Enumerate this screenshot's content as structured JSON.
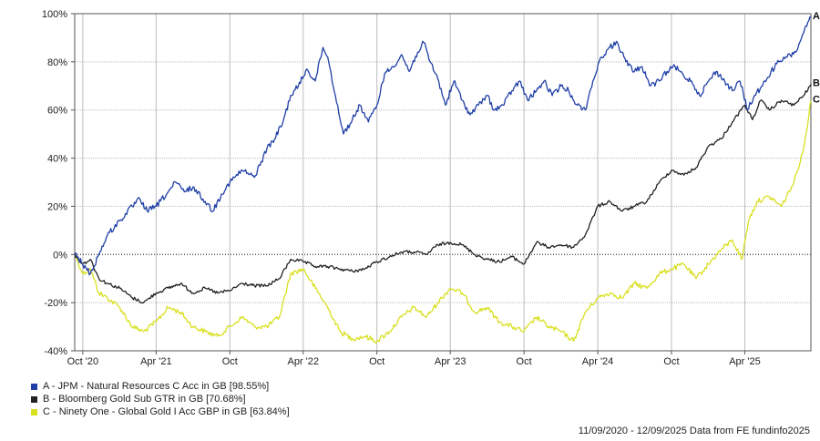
{
  "chart_data": {
    "type": "line",
    "ylim": [
      -40,
      100
    ],
    "yticks": [
      100,
      80,
      60,
      40,
      20,
      0,
      -20,
      -40
    ],
    "ytick_labels": [
      "100%",
      "80%",
      "60%",
      "40%",
      "20%",
      "0%",
      "-20%",
      "-40%"
    ],
    "xlim": [
      "2020-09-11",
      "2025-09-12"
    ],
    "xticks": [
      "2020-10-01",
      "2021-04-01",
      "2021-10-01",
      "2022-04-01",
      "2022-10-01",
      "2023-04-01",
      "2023-10-01",
      "2024-04-01",
      "2024-10-01",
      "2025-04-01"
    ],
    "xtick_labels": [
      "Oct '20",
      "Apr '21",
      "Oct",
      "Apr '22",
      "Oct",
      "Apr '23",
      "Oct",
      "Apr '24",
      "Oct",
      "Apr '25"
    ],
    "grid": true,
    "legend_position": "bottom-left",
    "series": [
      {
        "name": "A - JPM - Natural Resources C Acc in GB [98.55%]",
        "end_label": "A",
        "color": "#1f3fa6",
        "points": [
          [
            "2020-09-11",
            0
          ],
          [
            "2020-10-01",
            -4
          ],
          [
            "2020-10-20",
            -8
          ],
          [
            "2020-11-10",
            0
          ],
          [
            "2020-12-01",
            8
          ],
          [
            "2021-01-01",
            14
          ],
          [
            "2021-02-01",
            20
          ],
          [
            "2021-02-20",
            23
          ],
          [
            "2021-03-10",
            18
          ],
          [
            "2021-04-01",
            20
          ],
          [
            "2021-05-01",
            26
          ],
          [
            "2021-05-20",
            30
          ],
          [
            "2021-06-10",
            26
          ],
          [
            "2021-07-01",
            28
          ],
          [
            "2021-08-01",
            22
          ],
          [
            "2021-08-20",
            18
          ],
          [
            "2021-09-10",
            25
          ],
          [
            "2021-10-01",
            30
          ],
          [
            "2021-11-01",
            35
          ],
          [
            "2021-12-01",
            32
          ],
          [
            "2022-01-01",
            44
          ],
          [
            "2022-01-20",
            48
          ],
          [
            "2022-02-10",
            55
          ],
          [
            "2022-03-01",
            66
          ],
          [
            "2022-03-20",
            70
          ],
          [
            "2022-04-10",
            77
          ],
          [
            "2022-05-01",
            72
          ],
          [
            "2022-05-20",
            86
          ],
          [
            "2022-06-01",
            82
          ],
          [
            "2022-06-20",
            66
          ],
          [
            "2022-07-10",
            50
          ],
          [
            "2022-08-01",
            56
          ],
          [
            "2022-08-20",
            62
          ],
          [
            "2022-09-10",
            55
          ],
          [
            "2022-10-01",
            62
          ],
          [
            "2022-10-20",
            75
          ],
          [
            "2022-11-10",
            78
          ],
          [
            "2022-12-01",
            83
          ],
          [
            "2022-12-20",
            76
          ],
          [
            "2023-01-10",
            84
          ],
          [
            "2023-01-25",
            88
          ],
          [
            "2023-02-10",
            80
          ],
          [
            "2023-03-01",
            73
          ],
          [
            "2023-03-20",
            62
          ],
          [
            "2023-04-10",
            72
          ],
          [
            "2023-05-01",
            64
          ],
          [
            "2023-05-20",
            58
          ],
          [
            "2023-06-10",
            62
          ],
          [
            "2023-07-01",
            66
          ],
          [
            "2023-07-20",
            60
          ],
          [
            "2023-08-10",
            62
          ],
          [
            "2023-09-01",
            68
          ],
          [
            "2023-09-20",
            72
          ],
          [
            "2023-10-10",
            64
          ],
          [
            "2023-11-01",
            68
          ],
          [
            "2023-11-20",
            72
          ],
          [
            "2023-12-10",
            66
          ],
          [
            "2024-01-01",
            70
          ],
          [
            "2024-01-20",
            68
          ],
          [
            "2024-02-10",
            62
          ],
          [
            "2024-03-01",
            60
          ],
          [
            "2024-03-20",
            72
          ],
          [
            "2024-04-10",
            82
          ],
          [
            "2024-05-01",
            86
          ],
          [
            "2024-05-20",
            88
          ],
          [
            "2024-06-10",
            80
          ],
          [
            "2024-07-01",
            76
          ],
          [
            "2024-07-20",
            78
          ],
          [
            "2024-08-10",
            70
          ],
          [
            "2024-09-01",
            72
          ],
          [
            "2024-09-20",
            76
          ],
          [
            "2024-10-10",
            78
          ],
          [
            "2024-11-01",
            74
          ],
          [
            "2024-11-20",
            72
          ],
          [
            "2024-12-10",
            66
          ],
          [
            "2025-01-01",
            72
          ],
          [
            "2025-01-20",
            76
          ],
          [
            "2025-02-10",
            72
          ],
          [
            "2025-03-01",
            68
          ],
          [
            "2025-03-20",
            72
          ],
          [
            "2025-04-08",
            60
          ],
          [
            "2025-04-25",
            66
          ],
          [
            "2025-05-15",
            70
          ],
          [
            "2025-06-05",
            76
          ],
          [
            "2025-06-25",
            80
          ],
          [
            "2025-07-15",
            82
          ],
          [
            "2025-08-05",
            84
          ],
          [
            "2025-08-25",
            92
          ],
          [
            "2025-09-12",
            98.55
          ]
        ]
      },
      {
        "name": "B - Bloomberg Gold Sub GTR in GB [70.68%]",
        "end_label": "B",
        "color": "#222222",
        "points": [
          [
            "2020-09-11",
            0
          ],
          [
            "2020-10-01",
            -4
          ],
          [
            "2020-10-20",
            -2
          ],
          [
            "2020-11-10",
            -10
          ],
          [
            "2020-12-01",
            -12
          ],
          [
            "2021-01-01",
            -14
          ],
          [
            "2021-02-01",
            -18
          ],
          [
            "2021-03-01",
            -20
          ],
          [
            "2021-04-01",
            -16
          ],
          [
            "2021-05-01",
            -14
          ],
          [
            "2021-06-01",
            -12
          ],
          [
            "2021-07-01",
            -16
          ],
          [
            "2021-08-01",
            -14
          ],
          [
            "2021-09-01",
            -16
          ],
          [
            "2021-10-01",
            -15
          ],
          [
            "2021-11-01",
            -12
          ],
          [
            "2021-12-01",
            -13
          ],
          [
            "2022-01-01",
            -13
          ],
          [
            "2022-02-01",
            -10
          ],
          [
            "2022-03-01",
            -2
          ],
          [
            "2022-04-01",
            -3
          ],
          [
            "2022-05-01",
            -5
          ],
          [
            "2022-06-01",
            -5
          ],
          [
            "2022-07-01",
            -6
          ],
          [
            "2022-08-01",
            -7
          ],
          [
            "2022-09-01",
            -6
          ],
          [
            "2022-10-01",
            -3
          ],
          [
            "2022-11-01",
            -1
          ],
          [
            "2022-12-01",
            1
          ],
          [
            "2023-01-01",
            1
          ],
          [
            "2023-02-01",
            0
          ],
          [
            "2023-03-01",
            4
          ],
          [
            "2023-04-01",
            5
          ],
          [
            "2023-05-01",
            4
          ],
          [
            "2023-06-01",
            0
          ],
          [
            "2023-07-01",
            -2
          ],
          [
            "2023-08-01",
            -3
          ],
          [
            "2023-09-01",
            -1
          ],
          [
            "2023-10-01",
            -4
          ],
          [
            "2023-11-01",
            5
          ],
          [
            "2023-12-01",
            3
          ],
          [
            "2024-01-01",
            4
          ],
          [
            "2024-02-01",
            3
          ],
          [
            "2024-03-01",
            8
          ],
          [
            "2024-04-01",
            20
          ],
          [
            "2024-05-01",
            22
          ],
          [
            "2024-06-01",
            18
          ],
          [
            "2024-07-01",
            20
          ],
          [
            "2024-08-01",
            22
          ],
          [
            "2024-09-01",
            30
          ],
          [
            "2024-10-01",
            35
          ],
          [
            "2024-11-01",
            33
          ],
          [
            "2024-12-01",
            36
          ],
          [
            "2025-01-01",
            45
          ],
          [
            "2025-02-01",
            48
          ],
          [
            "2025-03-01",
            55
          ],
          [
            "2025-04-01",
            62
          ],
          [
            "2025-04-20",
            56
          ],
          [
            "2025-05-10",
            64
          ],
          [
            "2025-06-01",
            60
          ],
          [
            "2025-07-01",
            64
          ],
          [
            "2025-08-01",
            62
          ],
          [
            "2025-08-25",
            66
          ],
          [
            "2025-09-12",
            70.68
          ]
        ]
      },
      {
        "name": "C - Ninety One - Global Gold I Acc GBP in GB [63.84%]",
        "end_label": "C",
        "color": "#d9e021",
        "points": [
          [
            "2020-09-11",
            0
          ],
          [
            "2020-10-01",
            -8
          ],
          [
            "2020-10-20",
            -6
          ],
          [
            "2020-11-10",
            -16
          ],
          [
            "2020-12-01",
            -18
          ],
          [
            "2021-01-01",
            -22
          ],
          [
            "2021-02-01",
            -30
          ],
          [
            "2021-03-01",
            -32
          ],
          [
            "2021-04-01",
            -28
          ],
          [
            "2021-05-01",
            -22
          ],
          [
            "2021-06-01",
            -24
          ],
          [
            "2021-07-01",
            -30
          ],
          [
            "2021-08-01",
            -32
          ],
          [
            "2021-09-01",
            -34
          ],
          [
            "2021-10-01",
            -30
          ],
          [
            "2021-11-01",
            -26
          ],
          [
            "2021-12-01",
            -30
          ],
          [
            "2022-01-01",
            -30
          ],
          [
            "2022-02-01",
            -26
          ],
          [
            "2022-03-01",
            -8
          ],
          [
            "2022-04-01",
            -6
          ],
          [
            "2022-05-01",
            -14
          ],
          [
            "2022-06-01",
            -22
          ],
          [
            "2022-07-01",
            -32
          ],
          [
            "2022-08-01",
            -35
          ],
          [
            "2022-09-01",
            -34
          ],
          [
            "2022-10-01",
            -36
          ],
          [
            "2022-11-01",
            -32
          ],
          [
            "2022-12-01",
            -26
          ],
          [
            "2023-01-01",
            -22
          ],
          [
            "2023-02-01",
            -26
          ],
          [
            "2023-03-01",
            -20
          ],
          [
            "2023-04-01",
            -14
          ],
          [
            "2023-05-01",
            -16
          ],
          [
            "2023-06-01",
            -24
          ],
          [
            "2023-07-01",
            -22
          ],
          [
            "2023-08-01",
            -28
          ],
          [
            "2023-09-01",
            -30
          ],
          [
            "2023-10-01",
            -32
          ],
          [
            "2023-11-01",
            -26
          ],
          [
            "2023-12-01",
            -30
          ],
          [
            "2024-01-01",
            -32
          ],
          [
            "2024-02-01",
            -36
          ],
          [
            "2024-03-01",
            -24
          ],
          [
            "2024-04-01",
            -18
          ],
          [
            "2024-05-01",
            -16
          ],
          [
            "2024-06-01",
            -18
          ],
          [
            "2024-07-01",
            -12
          ],
          [
            "2024-08-01",
            -14
          ],
          [
            "2024-09-01",
            -8
          ],
          [
            "2024-10-01",
            -6
          ],
          [
            "2024-11-01",
            -4
          ],
          [
            "2024-12-01",
            -10
          ],
          [
            "2025-01-01",
            -4
          ],
          [
            "2025-02-01",
            2
          ],
          [
            "2025-03-01",
            6
          ],
          [
            "2025-03-25",
            -2
          ],
          [
            "2025-04-10",
            14
          ],
          [
            "2025-05-01",
            22
          ],
          [
            "2025-06-01",
            24
          ],
          [
            "2025-07-01",
            20
          ],
          [
            "2025-08-01",
            30
          ],
          [
            "2025-08-25",
            44
          ],
          [
            "2025-09-12",
            63.84
          ]
        ]
      }
    ],
    "footer": "11/09/2020 - 12/09/2025 Data from FE fundinfo2025"
  }
}
